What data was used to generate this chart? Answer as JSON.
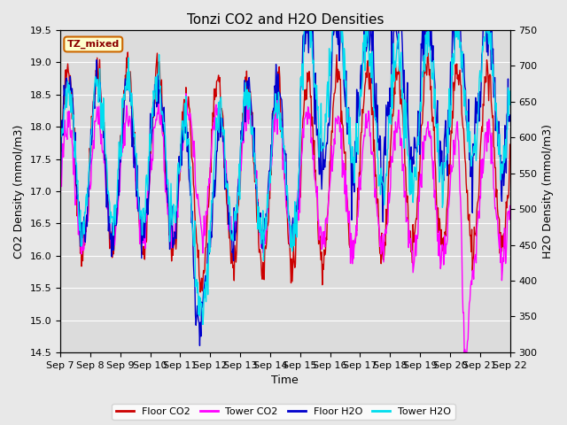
{
  "title": "Tonzi CO2 and H2O Densities",
  "xlabel": "Time",
  "ylabel_left": "CO2 Density (mmol/m3)",
  "ylabel_right": "H2O Density (mmol/m3)",
  "ylim_left": [
    14.5,
    19.5
  ],
  "ylim_right": [
    300,
    750
  ],
  "annotation_text": "TZ_mixed",
  "annotation_facecolor": "#ffffcc",
  "annotation_edgecolor": "#cc6600",
  "floor_co2_color": "#cc0000",
  "tower_co2_color": "#ff00ff",
  "floor_h2o_color": "#0000cc",
  "tower_h2o_color": "#00ddee",
  "fig_facecolor": "#e8e8e8",
  "plot_facecolor": "#dcdcdc",
  "grid_color": "#ffffff",
  "legend_labels": [
    "Floor CO2",
    "Tower CO2",
    "Floor H2O",
    "Tower H2O"
  ],
  "title_fontsize": 11,
  "axis_label_fontsize": 9,
  "tick_fontsize": 8,
  "linewidth": 1.0,
  "yticks_left": [
    14.5,
    15.0,
    15.5,
    16.0,
    16.5,
    17.0,
    17.5,
    18.0,
    18.5,
    19.0,
    19.5
  ],
  "yticks_right": [
    300,
    350,
    400,
    450,
    500,
    550,
    600,
    650,
    700,
    750
  ]
}
